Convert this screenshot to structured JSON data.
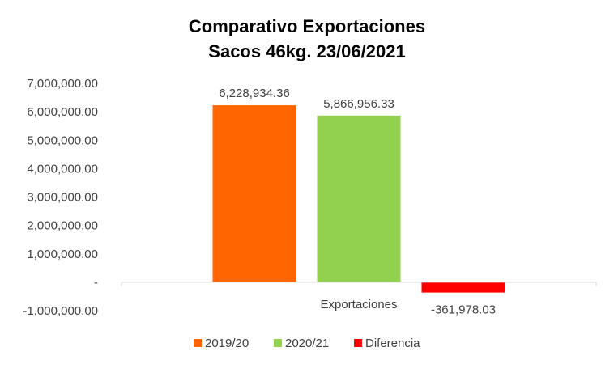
{
  "chart_data": {
    "type": "bar",
    "title_lines": [
      "Comparativo  Exportaciones",
      "Sacos 46kg. 23/06/2021"
    ],
    "categories": [
      "Exportaciones"
    ],
    "series": [
      {
        "name": "2019/20",
        "values": [
          6228934.36
        ],
        "color": "#FF6600",
        "label": "6,228,934.36"
      },
      {
        "name": "2020/21",
        "values": [
          5866956.33
        ],
        "color": "#92D050",
        "label": "5,866,956.33"
      },
      {
        "name": "Diferencia",
        "values": [
          -361978.03
        ],
        "color": "#FF0000",
        "label": "-361,978.03"
      }
    ],
    "ylim": [
      -1000000,
      7000000
    ],
    "y_ticks": [
      7000000,
      6000000,
      5000000,
      4000000,
      3000000,
      2000000,
      1000000,
      0,
      -1000000
    ],
    "y_tick_labels": [
      "7,000,000.00",
      "6,000,000.00",
      "5,000,000.00",
      "4,000,000.00",
      "3,000,000.00",
      "2,000,000.00",
      "1,000,000.00",
      "-",
      "-1,000,000.00"
    ],
    "grid": false,
    "legend_position": "bottom"
  }
}
